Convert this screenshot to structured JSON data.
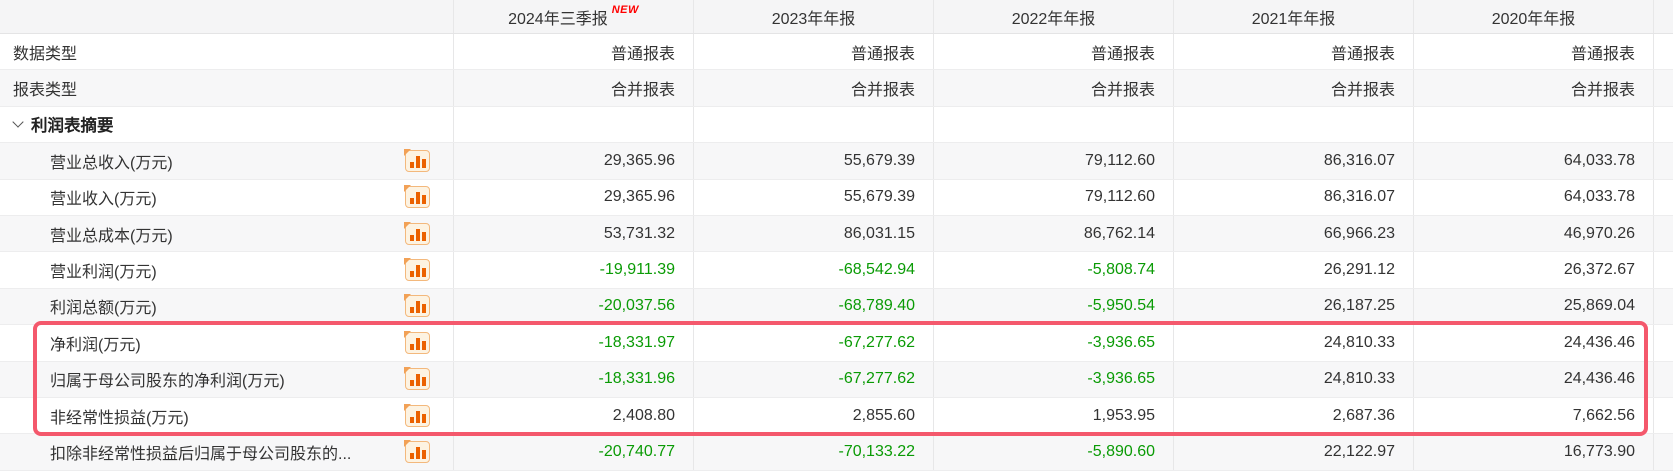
{
  "table": {
    "columns": [
      {
        "label": "2024年三季报",
        "badge": "NEW"
      },
      {
        "label": "2023年年报"
      },
      {
        "label": "2022年年报"
      },
      {
        "label": "2021年年报"
      },
      {
        "label": "2020年年报"
      }
    ],
    "rows": [
      {
        "type": "plain",
        "label": "数据类型",
        "values": [
          "普通报表",
          "普通报表",
          "普通报表",
          "普通报表",
          "普通报表"
        ]
      },
      {
        "type": "plain",
        "label": "报表类型",
        "values": [
          "合并报表",
          "合并报表",
          "合并报表",
          "合并报表",
          "合并报表"
        ]
      },
      {
        "type": "section",
        "label": "利润表摘要",
        "values": [
          "",
          "",
          "",
          "",
          ""
        ]
      },
      {
        "type": "item",
        "label": "营业总收入(万元)",
        "icon": "bar-chart-icon",
        "values": [
          "29,365.96",
          "55,679.39",
          "79,112.60",
          "86,316.07",
          "64,033.78"
        ]
      },
      {
        "type": "item",
        "label": "营业收入(万元)",
        "icon": "bar-chart-icon",
        "values": [
          "29,365.96",
          "55,679.39",
          "79,112.60",
          "86,316.07",
          "64,033.78"
        ]
      },
      {
        "type": "item",
        "label": "营业总成本(万元)",
        "icon": "bar-chart-icon",
        "values": [
          "53,731.32",
          "86,031.15",
          "86,762.14",
          "66,966.23",
          "46,970.26"
        ]
      },
      {
        "type": "item",
        "label": "营业利润(万元)",
        "icon": "bar-chart-icon",
        "values": [
          "-19,911.39",
          "-68,542.94",
          "-5,808.74",
          "26,291.12",
          "26,372.67"
        ]
      },
      {
        "type": "item",
        "label": "利润总额(万元)",
        "icon": "bar-chart-icon",
        "values": [
          "-20,037.56",
          "-68,789.40",
          "-5,950.54",
          "26,187.25",
          "25,869.04"
        ]
      },
      {
        "type": "item",
        "label": "净利润(万元)",
        "icon": "bar-chart-icon",
        "values": [
          "-18,331.97",
          "-67,277.62",
          "-3,936.65",
          "24,810.33",
          "24,436.46"
        ]
      },
      {
        "type": "item",
        "label": "归属于母公司股东的净利润(万元)",
        "icon": "bar-chart-icon",
        "values": [
          "-18,331.96",
          "-67,277.62",
          "-3,936.65",
          "24,810.33",
          "24,436.46"
        ]
      },
      {
        "type": "item",
        "label": "非经常性损益(万元)",
        "icon": "bar-chart-icon",
        "values": [
          "2,408.80",
          "2,855.60",
          "1,953.95",
          "2,687.36",
          "7,662.56"
        ]
      },
      {
        "type": "item",
        "label": "扣除非经常性损益后归属于母公司股东的...",
        "icon": "bar-chart-icon",
        "values": [
          "-20,740.77",
          "-70,133.22",
          "-5,890.60",
          "22,122.97",
          "16,773.90"
        ]
      }
    ],
    "highlight": {
      "rows": [
        "净利润(万元)",
        "归属于母公司股东的净利润(万元)",
        "非经常性损益(万元)"
      ]
    }
  },
  "colors": {
    "negative_value": "#0a9b05",
    "highlight_border": "#f4586c",
    "new_badge": "#ff0000",
    "icon_orange": "#eb6100",
    "zebra_row": "#f7f7f8",
    "header_bg": "#f5f5f6"
  }
}
